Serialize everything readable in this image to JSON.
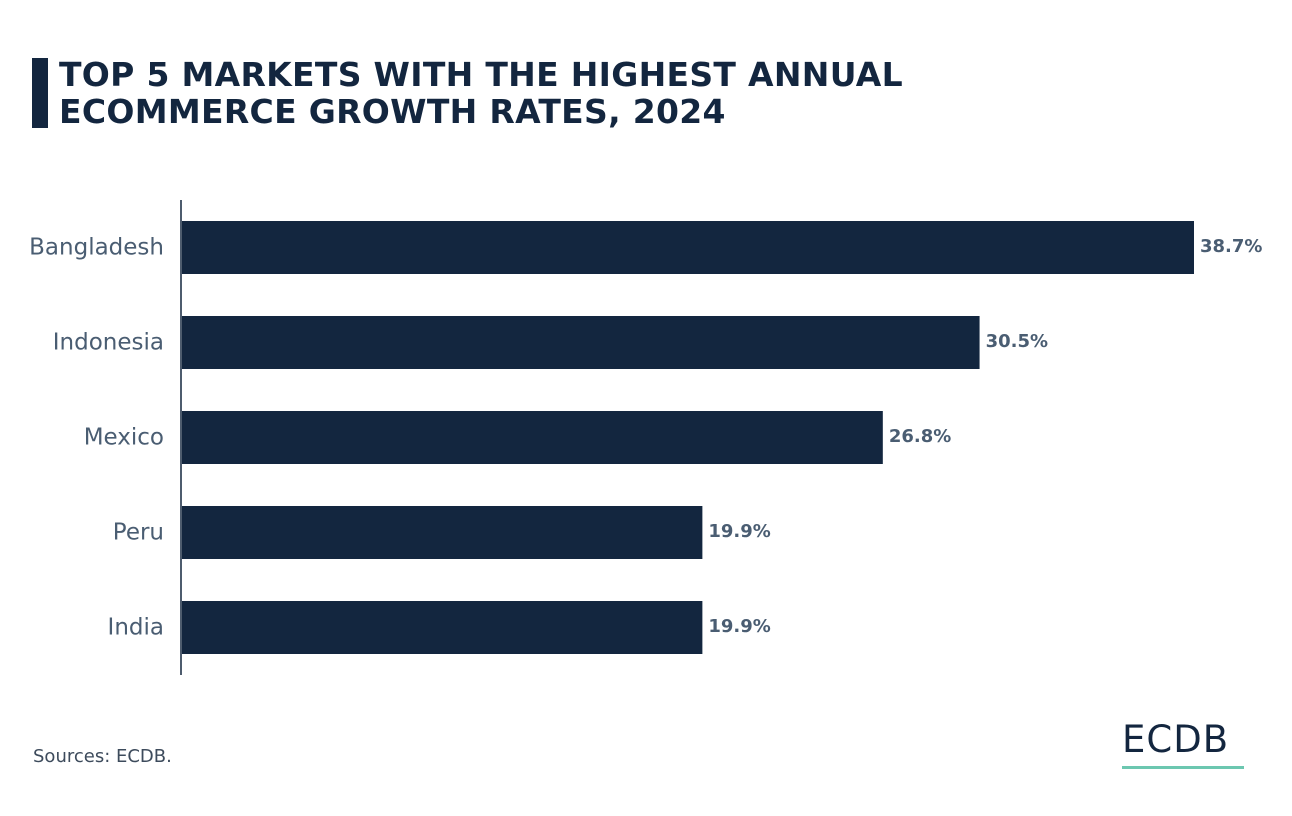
{
  "title": "TOP 5 MARKETS WITH THE HIGHEST ANNUAL ECOMMERCE GROWTH RATES, 2024",
  "source": "Sources: ECDB.",
  "logo": "ECDB",
  "colors": {
    "bar": "#13263f",
    "category_label": "#4a5d72",
    "value_label": "#4a5d72",
    "axis": "#13263f",
    "logo_underline": "#6cc7b0"
  },
  "chart_data": {
    "type": "bar",
    "orientation": "horizontal",
    "title": "TOP 5 MARKETS WITH THE HIGHEST ANNUAL ECOMMERCE GROWTH RATES, 2024",
    "categories": [
      "Bangladesh",
      "Indonesia",
      "Mexico",
      "Peru",
      "India"
    ],
    "values": [
      38.7,
      30.5,
      26.8,
      19.9,
      19.9
    ],
    "value_labels": [
      "38.7%",
      "30.5%",
      "26.8%",
      "19.9%",
      "19.9%"
    ],
    "xlabel": "",
    "ylabel": "",
    "xlim": [
      0,
      38.7
    ],
    "grid": false,
    "legend": "none"
  }
}
